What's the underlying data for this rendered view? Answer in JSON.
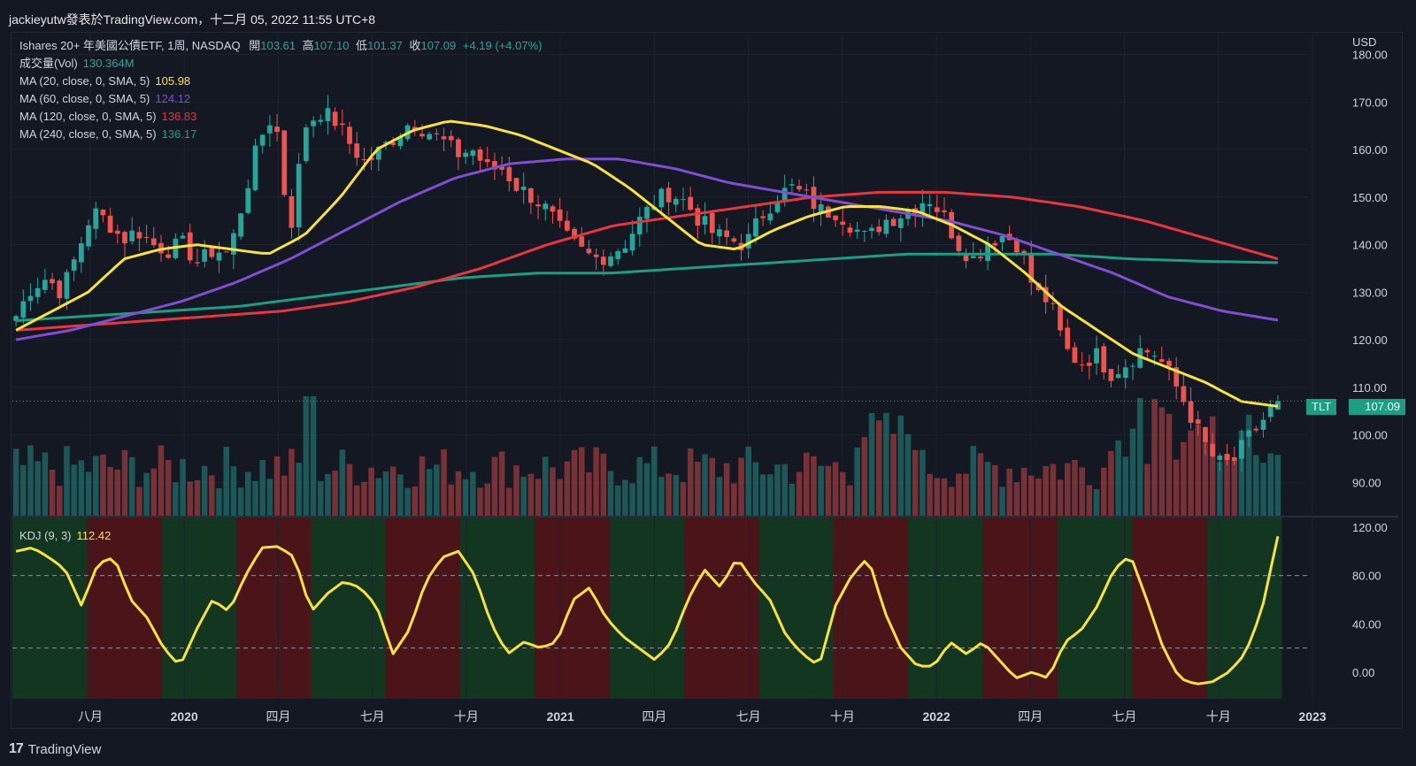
{
  "header": {
    "text": "jackieyutw發表於TradingView.com，十二月 05, 2022 11:55 UTC+8"
  },
  "legend": {
    "symbol_line": {
      "name": "Ishares 20+ 年美國公債ETF, 1周, NASDAQ",
      "open_label": "開",
      "open": "103.61",
      "high_label": "高",
      "high": "107.10",
      "low_label": "低",
      "low": "101.37",
      "close_label": "收",
      "close": "107.09",
      "change": "+4.19 (+4.07%)"
    },
    "volume": {
      "label": "成交量(Vol)",
      "value": "130.364M"
    },
    "ma20": {
      "label": "MA (20, close, 0, SMA, 5)",
      "value": "105.98",
      "color": "#f7e23e"
    },
    "ma60": {
      "label": "MA (60, close, 0, SMA, 5)",
      "value": "124.12",
      "color": "#7e4fd1"
    },
    "ma120": {
      "label": "MA (120, close, 0, SMA, 5)",
      "value": "136.83",
      "color": "#e8353f"
    },
    "ma240": {
      "label": "MA (240, close, 0, SMA, 5)",
      "value": "136.17",
      "color": "#1b9e82"
    },
    "kdj": {
      "label": "KDJ (9, 3)",
      "value": "112.42",
      "color": "#f7e23e"
    }
  },
  "price_tag": {
    "symbol": "TLT",
    "value": "107.09"
  },
  "footer": {
    "brand": "TradingView",
    "logo": "tradingview-logo-icon"
  },
  "colors": {
    "up": "#26a69a",
    "down": "#ef5350",
    "bg": "#131722",
    "grid": "#1e2230",
    "kdj_green": "#12361f",
    "kdj_red": "#4a1419"
  },
  "chart_data": {
    "type": "candlestick",
    "interval": "1 week",
    "currency": "USD",
    "price_axis": {
      "label": "USD",
      "ticks": [
        "180.00",
        "170.00",
        "160.00",
        "150.00",
        "140.00",
        "130.00",
        "120.00",
        "110.00",
        "100.00",
        "90.00"
      ],
      "range": [
        83,
        184
      ]
    },
    "kdj_axis": {
      "ticks": [
        "120.00",
        "80.00",
        "40.00",
        "0.00"
      ],
      "range": [
        -22,
        128
      ],
      "dashed_levels": [
        80,
        20
      ]
    },
    "time_axis": {
      "ticks": [
        "八月",
        "2020",
        "四月",
        "七月",
        "十月",
        "2021",
        "四月",
        "七月",
        "十月",
        "2022",
        "四月",
        "七月",
        "十月",
        "2023"
      ]
    },
    "close_anchors": [
      125,
      131,
      133,
      130,
      138,
      147,
      145,
      141,
      143,
      140,
      139,
      140,
      136,
      139,
      138,
      150,
      162,
      168,
      142,
      165,
      168,
      166,
      161,
      157,
      160,
      163,
      166,
      164,
      162,
      159,
      160,
      156,
      156,
      152,
      150,
      147,
      142,
      139,
      137,
      138,
      140,
      145,
      149,
      151,
      149,
      145,
      142,
      141,
      140,
      146,
      150,
      152,
      150,
      147,
      147,
      144,
      141,
      145,
      146,
      148,
      150,
      146,
      140,
      137,
      141,
      142,
      140,
      130,
      128,
      118,
      115,
      117,
      113,
      115,
      118,
      117,
      112,
      106,
      99,
      94,
      94,
      99,
      103,
      107.09
    ],
    "ma20_anchors": [
      122,
      126,
      130,
      137,
      139,
      140,
      139,
      138,
      142,
      150,
      160,
      164,
      166,
      165,
      163,
      160,
      157,
      152,
      146,
      140,
      139,
      143,
      146,
      148,
      148,
      147,
      144,
      140,
      134,
      127,
      122,
      117,
      114,
      111,
      107,
      106
    ],
    "ma60_anchors": [
      120,
      122,
      125,
      128,
      132,
      137,
      143,
      149,
      154,
      157,
      158,
      158,
      156,
      153,
      151,
      149,
      147,
      145,
      142,
      138,
      134,
      129,
      126,
      124.12
    ],
    "ma120_anchors": [
      122,
      123,
      124,
      125,
      126,
      128,
      131,
      135,
      140,
      144,
      146,
      148,
      150,
      151,
      151,
      150,
      148,
      145,
      141,
      137
    ],
    "ma240_anchors": [
      124,
      125,
      126,
      127,
      129,
      131,
      133,
      134,
      134,
      135,
      136,
      137,
      138,
      138,
      138,
      137,
      136.5,
      136.2
    ],
    "kdj_anchors": [
      100,
      103,
      95,
      85,
      55,
      90,
      95,
      60,
      45,
      20,
      5,
      35,
      60,
      50,
      80,
      103,
      104,
      95,
      50,
      65,
      75,
      70,
      55,
      15,
      35,
      75,
      95,
      100,
      80,
      40,
      15,
      25,
      20,
      25,
      60,
      70,
      45,
      30,
      20,
      10,
      25,
      60,
      85,
      70,
      95,
      75,
      60,
      30,
      15,
      5,
      55,
      80,
      95,
      50,
      20,
      5,
      5,
      25,
      15,
      25,
      10,
      -5,
      0,
      -5,
      25,
      35,
      55,
      85,
      97,
      60,
      20,
      -5,
      -10,
      -8,
      0,
      15,
      50,
      112.42
    ],
    "kdj_regimes": [
      "green",
      "red",
      "green",
      "red",
      "green",
      "red",
      "green",
      "red",
      "green",
      "red",
      "green",
      "red",
      "green",
      "red",
      "green",
      "red",
      "green"
    ],
    "volume_note": "volume histogram (relative), colored by candle direction"
  }
}
